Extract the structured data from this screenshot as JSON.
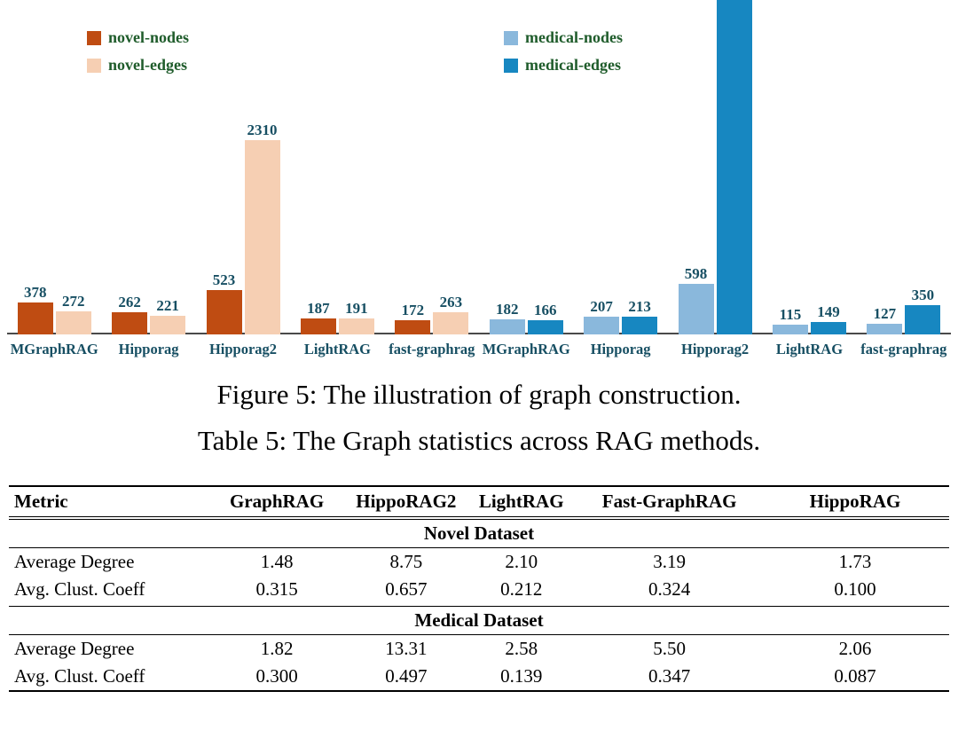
{
  "figure_caption": "Figure 5: The illustration of graph construction.",
  "table_caption": "Table 5: The Graph statistics across RAG methods.",
  "chart_data": {
    "type": "bar",
    "title": "",
    "legend_position": "top",
    "grid": false,
    "legend": [
      {
        "label": "novel-nodes",
        "color": "#bf4c12"
      },
      {
        "label": "novel-edges",
        "color": "#f6cfb3"
      },
      {
        "label": "medical-nodes",
        "color": "#8ab8dc"
      },
      {
        "label": "medical-edges",
        "color": "#1787c1"
      }
    ],
    "legend_text_color": "#1f5c2b",
    "value_label_color": "#174f63",
    "category_label_color": "#174f63",
    "groups": [
      {
        "name": "novel",
        "categories": [
          "MGraphRAG",
          "Hipporag",
          "Hipporag2",
          "LightRAG",
          "fast-graphrag"
        ],
        "series": [
          {
            "name": "novel-nodes",
            "color": "#bf4c12",
            "values": [
              378,
              262,
              523,
              187,
              172
            ]
          },
          {
            "name": "novel-edges",
            "color": "#f6cfb3",
            "values": [
              272,
              221,
              2310,
              191,
              263
            ]
          }
        ]
      },
      {
        "name": "medical",
        "categories": [
          "MGraphRAG",
          "Hipporag",
          "Hipporag2",
          "LightRAG",
          "fast-graphrag"
        ],
        "series": [
          {
            "name": "medical-nodes",
            "color": "#8ab8dc",
            "values": [
              182,
              207,
              598,
              115,
              127
            ]
          },
          {
            "name": "medical-edges",
            "color": "#1787c1",
            "values": [
              166,
              213,
              null,
              149,
              350
            ]
          }
        ]
      }
    ],
    "clipped_note": "medical-edges bar for Hipporag2 extends beyond the top of the figure; its value label is cut off"
  },
  "table": {
    "columns": [
      "Metric",
      "GraphRAG",
      "HippoRAG2",
      "LightRAG",
      "Fast-GraphRAG",
      "HippoRAG"
    ],
    "sections": [
      {
        "title": "Novel Dataset",
        "rows": [
          {
            "metric": "Average Degree",
            "values": [
              "1.48",
              "8.75",
              "2.10",
              "3.19",
              "1.73"
            ]
          },
          {
            "metric": "Avg. Clust. Coeff",
            "values": [
              "0.315",
              "0.657",
              "0.212",
              "0.324",
              "0.100"
            ]
          }
        ]
      },
      {
        "title": "Medical Dataset",
        "rows": [
          {
            "metric": "Average Degree",
            "values": [
              "1.82",
              "13.31",
              "2.58",
              "5.50",
              "2.06"
            ]
          },
          {
            "metric": "Avg. Clust. Coeff",
            "values": [
              "0.300",
              "0.497",
              "0.139",
              "0.347",
              "0.087"
            ]
          }
        ]
      }
    ]
  }
}
